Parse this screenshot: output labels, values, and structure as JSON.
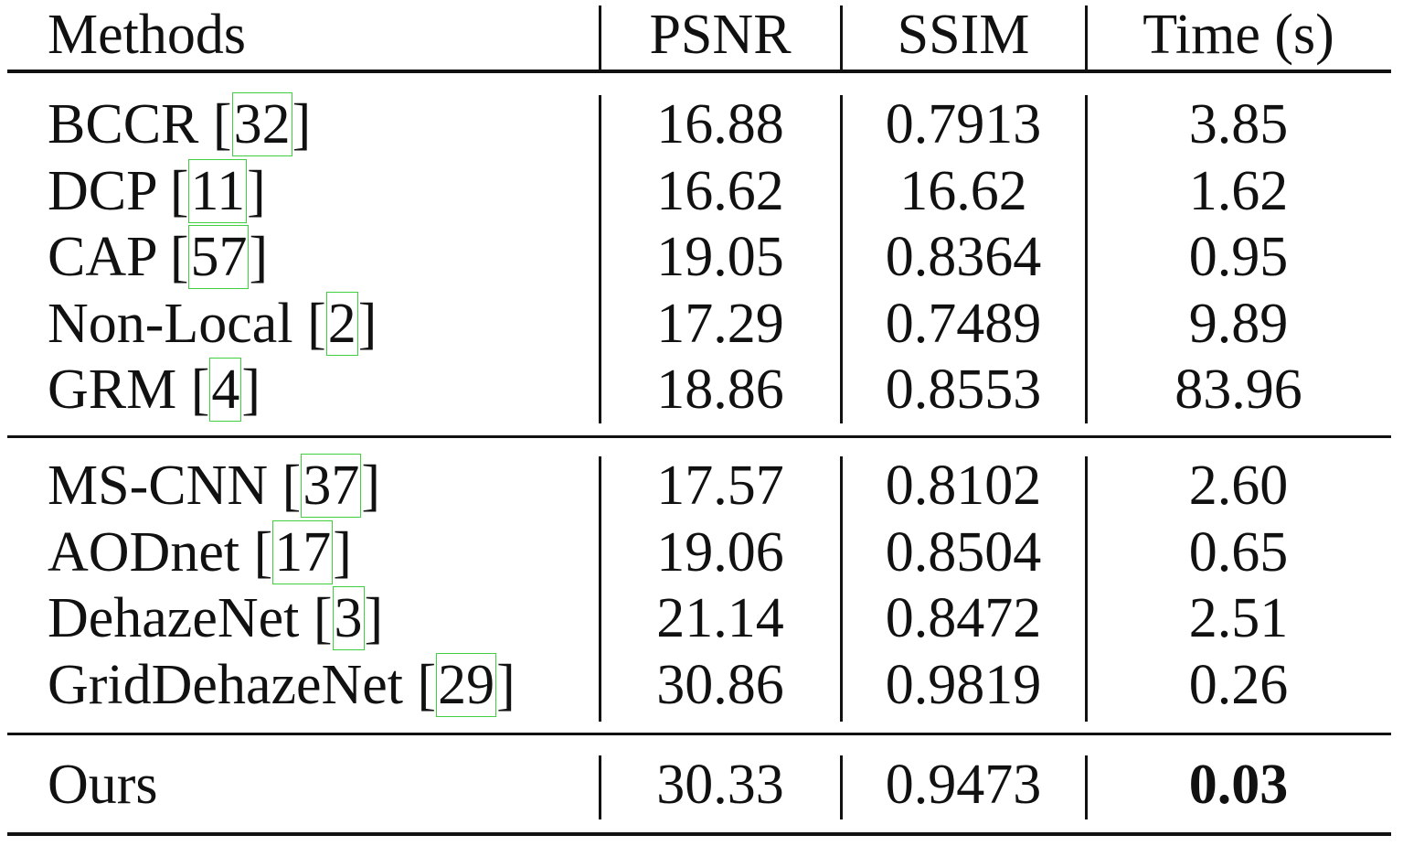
{
  "table": {
    "headers": [
      "Methods",
      "PSNR",
      "SSIM",
      "Time (s)"
    ],
    "groups": [
      [
        {
          "method": "BCCR",
          "ref": "32",
          "psnr": "16.88",
          "ssim": "0.7913",
          "time": "3.85"
        },
        {
          "method": "DCP",
          "ref": "11",
          "psnr": "16.62",
          "ssim": "16.62",
          "time": "1.62"
        },
        {
          "method": "CAP",
          "ref": "57",
          "psnr": "19.05",
          "ssim": "0.8364",
          "time": "0.95"
        },
        {
          "method": "Non-Local",
          "ref": "2",
          "psnr": "17.29",
          "ssim": "0.7489",
          "time": "9.89"
        },
        {
          "method": "GRM",
          "ref": "4",
          "psnr": "18.86",
          "ssim": "0.8553",
          "time": "83.96"
        }
      ],
      [
        {
          "method": "MS-CNN",
          "ref": "37",
          "psnr": "17.57",
          "ssim": "0.8102",
          "time": "2.60"
        },
        {
          "method": "AODnet",
          "ref": "17",
          "psnr": "19.06",
          "ssim": "0.8504",
          "time": "0.65"
        },
        {
          "method": "DehazeNet",
          "ref": "3",
          "psnr": "21.14",
          "ssim": "0.8472",
          "time": "2.51"
        },
        {
          "method": "GridDehazeNet",
          "ref": "29",
          "psnr": "30.86",
          "ssim": "0.9819",
          "time": "0.26"
        }
      ],
      [
        {
          "method": "Ours",
          "ref": "",
          "psnr": "30.33",
          "ssim": "0.9473",
          "time": "0.03",
          "bold_time": true
        }
      ]
    ],
    "colors": {
      "citation_box": "#3fcf3f",
      "text": "#111111"
    }
  }
}
